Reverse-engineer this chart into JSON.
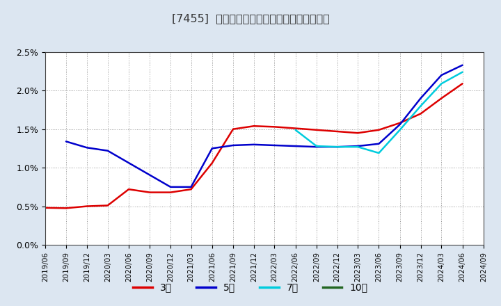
{
  "title": "[7455]  当期純利益マージンの標準偏差の推移",
  "background_color": "#ffffff",
  "plot_background": "#ffffff",
  "outer_background": "#dce6f1",
  "grid_color": "#aaaaaa",
  "ylim": [
    0.0,
    0.025
  ],
  "yticks": [
    0.0,
    0.005,
    0.01,
    0.015,
    0.02,
    0.025
  ],
  "ytick_labels": [
    "0.0%",
    "0.5%",
    "1.0%",
    "1.5%",
    "2.0%",
    "2.5%"
  ],
  "series_order": [
    "3年",
    "5年",
    "7年",
    "10年"
  ],
  "series": {
    "3年": {
      "color": "#dd0000",
      "dates": [
        "2019/06",
        "2019/09",
        "2019/12",
        "2020/03",
        "2020/06",
        "2020/09",
        "2020/12",
        "2021/03",
        "2021/06",
        "2021/09",
        "2021/12",
        "2022/03",
        "2022/06",
        "2022/09",
        "2022/12",
        "2023/03",
        "2023/06",
        "2023/09",
        "2023/12",
        "2024/03",
        "2024/06"
      ],
      "values": [
        0.0048,
        0.00475,
        0.005,
        0.0051,
        0.0072,
        0.0068,
        0.0068,
        0.0072,
        0.0106,
        0.015,
        0.0154,
        0.0153,
        0.0151,
        0.0149,
        0.0147,
        0.0145,
        0.0149,
        0.0158,
        0.017,
        0.019,
        0.0209
      ]
    },
    "5年": {
      "color": "#0000cc",
      "dates": [
        "2019/09",
        "2019/12",
        "2020/03",
        "2020/12",
        "2021/03",
        "2021/06",
        "2021/09",
        "2021/12",
        "2022/03",
        "2022/06",
        "2022/09",
        "2022/12",
        "2023/03",
        "2023/06",
        "2023/09",
        "2023/12",
        "2024/03",
        "2024/06"
      ],
      "values": [
        0.0134,
        0.0126,
        0.0122,
        0.0075,
        0.0075,
        0.0125,
        0.0129,
        0.013,
        0.0129,
        0.0128,
        0.0127,
        0.0127,
        0.0128,
        0.0131,
        0.0156,
        0.019,
        0.022,
        0.0233
      ]
    },
    "7年": {
      "color": "#00ccdd",
      "dates": [
        "2022/06",
        "2022/09",
        "2022/12",
        "2023/03",
        "2023/06",
        "2023/09",
        "2023/12",
        "2024/03",
        "2024/06"
      ],
      "values": [
        0.0149,
        0.0128,
        0.0127,
        0.0127,
        0.0119,
        0.0149,
        0.018,
        0.0209,
        0.0224
      ]
    },
    "10年": {
      "color": "#226622",
      "dates": [
        "2024/06"
      ],
      "values": [
        0.0209
      ]
    }
  },
  "legend_entries": [
    "3年",
    "5年",
    "7年",
    "10年"
  ],
  "legend_colors": [
    "#dd0000",
    "#0000cc",
    "#00ccdd",
    "#226622"
  ],
  "xlabel_dates": [
    "2019/06",
    "2019/09",
    "2019/12",
    "2020/03",
    "2020/06",
    "2020/09",
    "2020/12",
    "2021/03",
    "2021/06",
    "2021/09",
    "2021/12",
    "2022/03",
    "2022/06",
    "2022/09",
    "2022/12",
    "2023/03",
    "2023/06",
    "2023/09",
    "2023/12",
    "2024/03",
    "2024/06",
    "2024/09"
  ]
}
